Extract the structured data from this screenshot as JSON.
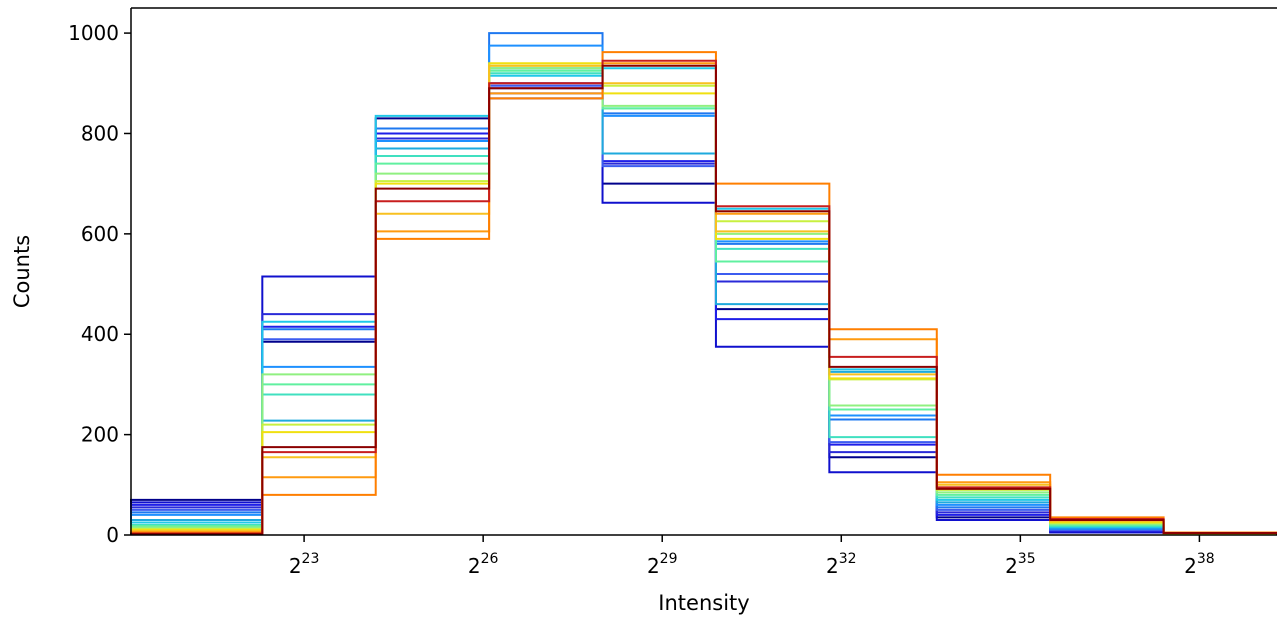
{
  "chart_data": {
    "type": "histogram-step",
    "title": "",
    "xlabel": "Intensity",
    "ylabel": "Counts",
    "xscale": "log2",
    "ylim": [
      0,
      1050
    ],
    "yticks": [
      0,
      200,
      400,
      600,
      800,
      1000
    ],
    "xticks": [
      {
        "base": "2",
        "exp": "23"
      },
      {
        "base": "2",
        "exp": "26"
      },
      {
        "base": "2",
        "exp": "29"
      },
      {
        "base": "2",
        "exp": "32"
      },
      {
        "base": "2",
        "exp": "35"
      },
      {
        "base": "2",
        "exp": "38"
      }
    ],
    "bin_edges_log2": [
      20.1,
      22.3,
      24.2,
      26.1,
      28.0,
      29.9,
      31.8,
      33.6,
      35.5,
      37.4,
      39.3
    ],
    "series": [
      {
        "color": "#00008b",
        "values": [
          70,
          385,
          830,
          900,
          700,
          450,
          155,
          35,
          5,
          1
        ]
      },
      {
        "color": "#1010cd",
        "values": [
          65,
          515,
          810,
          870,
          662,
          375,
          125,
          30,
          5,
          1
        ]
      },
      {
        "color": "#1e1ee8",
        "values": [
          60,
          415,
          800,
          880,
          745,
          430,
          180,
          40,
          8,
          1
        ]
      },
      {
        "color": "#2a2ad8",
        "values": [
          55,
          440,
          790,
          890,
          740,
          505,
          165,
          45,
          9,
          1
        ]
      },
      {
        "color": "#3c5cf0",
        "values": [
          50,
          390,
          770,
          895,
          735,
          520,
          185,
          50,
          10,
          1
        ]
      },
      {
        "color": "#1e78f0",
        "values": [
          45,
          410,
          810,
          1000,
          840,
          580,
          230,
          55,
          12,
          1
        ]
      },
      {
        "color": "#1e90ff",
        "values": [
          40,
          335,
          785,
          975,
          835,
          585,
          238,
          60,
          13,
          1
        ]
      },
      {
        "color": "#1eaadd",
        "values": [
          30,
          228,
          770,
          930,
          760,
          460,
          325,
          65,
          15,
          2
        ]
      },
      {
        "color": "#20c8e8",
        "values": [
          25,
          425,
          835,
          915,
          930,
          650,
          330,
          70,
          16,
          2
        ]
      },
      {
        "color": "#40e0c0",
        "values": [
          20,
          280,
          755,
          920,
          850,
          570,
          195,
          75,
          18,
          2
        ]
      },
      {
        "color": "#60f0a0",
        "values": [
          18,
          300,
          740,
          925,
          850,
          545,
          250,
          80,
          20,
          2
        ]
      },
      {
        "color": "#90f080",
        "values": [
          15,
          320,
          720,
          930,
          855,
          600,
          258,
          85,
          22,
          3
        ]
      },
      {
        "color": "#c8f040",
        "values": [
          12,
          220,
          705,
          935,
          895,
          625,
          310,
          90,
          24,
          3
        ]
      },
      {
        "color": "#f0e010",
        "values": [
          10,
          205,
          700,
          940,
          880,
          590,
          312,
          95,
          26,
          3
        ]
      },
      {
        "color": "#f8c020",
        "values": [
          8,
          155,
          640,
          935,
          900,
          605,
          320,
          100,
          28,
          4
        ]
      },
      {
        "color": "#ff9a10",
        "values": [
          6,
          115,
          605,
          880,
          940,
          640,
          390,
          105,
          30,
          4
        ]
      },
      {
        "color": "#ff7f00",
        "values": [
          4,
          80,
          590,
          870,
          962,
          700,
          410,
          120,
          35,
          5
        ]
      },
      {
        "color": "#c81e1e",
        "values": [
          3,
          165,
          665,
          900,
          945,
          655,
          355,
          95,
          32,
          4
        ]
      },
      {
        "color": "#8b0000",
        "values": [
          2,
          175,
          690,
          890,
          935,
          645,
          335,
          92,
          30,
          4
        ]
      }
    ]
  }
}
